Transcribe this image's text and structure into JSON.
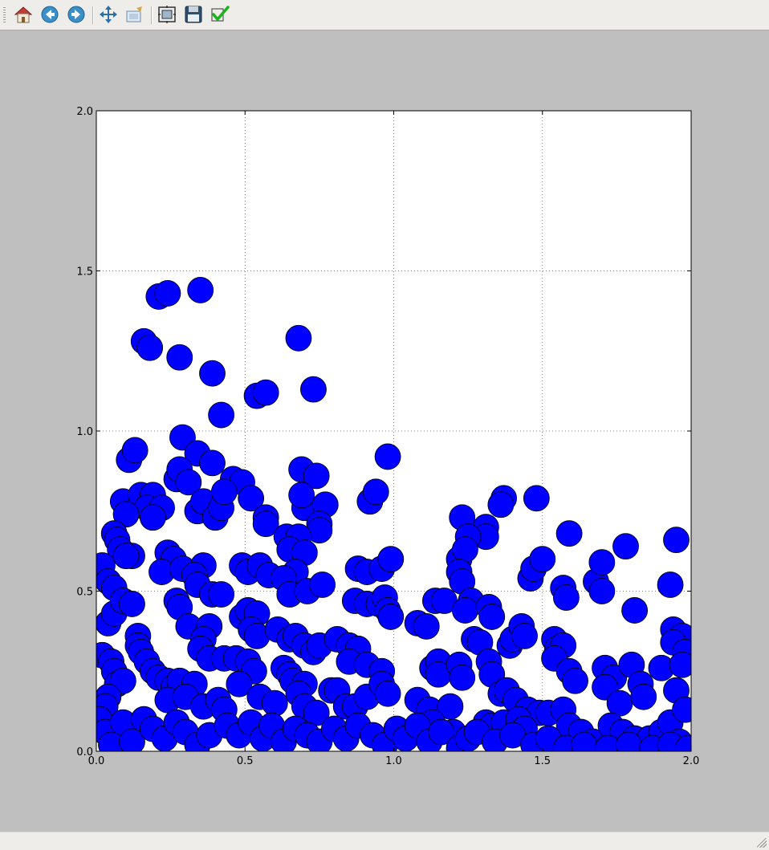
{
  "toolbar": {
    "buttons": [
      {
        "name": "home-button",
        "icon": "home-icon",
        "tooltip": "Home"
      },
      {
        "name": "back-button",
        "icon": "back-arrow-icon",
        "tooltip": "Back"
      },
      {
        "name": "forward-button",
        "icon": "forward-arrow-icon",
        "tooltip": "Forward"
      },
      {
        "name": "pan-button",
        "icon": "move-arrows-icon",
        "tooltip": "Pan"
      },
      {
        "name": "zoom-button",
        "icon": "zoom-rect-icon",
        "tooltip": "Zoom"
      },
      {
        "name": "subplots-button",
        "icon": "subplots-icon",
        "tooltip": "Subplots"
      },
      {
        "name": "save-button",
        "icon": "floppy-disk-icon",
        "tooltip": "Save"
      },
      {
        "name": "edit-axis-button",
        "icon": "checkmark-icon",
        "tooltip": "Edit axis"
      }
    ]
  },
  "colors": {
    "marker_fill": "#0000ff",
    "marker_edge": "#000000",
    "figure_bg": "#bfbfbf",
    "axes_bg": "#ffffff"
  },
  "chart_data": {
    "type": "scatter",
    "title": "",
    "xlabel": "",
    "ylabel": "",
    "xlim": [
      0.0,
      2.0
    ],
    "ylim": [
      0.0,
      2.0
    ],
    "xticks": [
      "0.0",
      "0.5",
      "1.0",
      "1.5",
      "2.0"
    ],
    "yticks": [
      "0.0",
      "0.5",
      "1.0",
      "1.5",
      "2.0"
    ],
    "grid": true,
    "marker": "circle",
    "points": [
      [
        0.21,
        1.42
      ],
      [
        0.24,
        1.43
      ],
      [
        0.35,
        1.44
      ],
      [
        0.16,
        1.28
      ],
      [
        0.18,
        1.26
      ],
      [
        0.28,
        1.23
      ],
      [
        0.68,
        1.29
      ],
      [
        0.39,
        1.18
      ],
      [
        0.54,
        1.11
      ],
      [
        0.57,
        1.12
      ],
      [
        0.73,
        1.13
      ],
      [
        0.42,
        1.05
      ],
      [
        0.29,
        0.98
      ],
      [
        0.11,
        0.91
      ],
      [
        0.13,
        0.94
      ],
      [
        0.34,
        0.93
      ],
      [
        0.39,
        0.9
      ],
      [
        0.98,
        0.92
      ],
      [
        0.27,
        0.85
      ],
      [
        0.28,
        0.88
      ],
      [
        0.31,
        0.84
      ],
      [
        0.46,
        0.85
      ],
      [
        0.49,
        0.84
      ],
      [
        0.69,
        0.88
      ],
      [
        0.74,
        0.86
      ],
      [
        0.09,
        0.78
      ],
      [
        0.15,
        0.8
      ],
      [
        0.19,
        0.8
      ],
      [
        0.17,
        0.76
      ],
      [
        0.22,
        0.76
      ],
      [
        0.19,
        0.73
      ],
      [
        0.1,
        0.74
      ],
      [
        0.34,
        0.75
      ],
      [
        0.36,
        0.78
      ],
      [
        0.4,
        0.73
      ],
      [
        0.42,
        0.76
      ],
      [
        0.43,
        0.81
      ],
      [
        0.52,
        0.79
      ],
      [
        0.57,
        0.73
      ],
      [
        0.57,
        0.71
      ],
      [
        0.7,
        0.76
      ],
      [
        0.69,
        0.8
      ],
      [
        0.77,
        0.77
      ],
      [
        0.75,
        0.71
      ],
      [
        0.75,
        0.69
      ],
      [
        0.92,
        0.78
      ],
      [
        0.94,
        0.81
      ],
      [
        1.23,
        0.73
      ],
      [
        1.37,
        0.79
      ],
      [
        1.36,
        0.77
      ],
      [
        1.48,
        0.79
      ],
      [
        1.31,
        0.7
      ],
      [
        1.31,
        0.67
      ],
      [
        1.25,
        0.67
      ],
      [
        1.59,
        0.68
      ],
      [
        1.78,
        0.64
      ],
      [
        1.95,
        0.66
      ],
      [
        0.06,
        0.68
      ],
      [
        0.07,
        0.66
      ],
      [
        0.08,
        0.63
      ],
      [
        0.12,
        0.61
      ],
      [
        0.1,
        0.61
      ],
      [
        0.02,
        0.58
      ],
      [
        0.04,
        0.53
      ],
      [
        0.06,
        0.51
      ],
      [
        0.24,
        0.62
      ],
      [
        0.26,
        0.6
      ],
      [
        0.22,
        0.56
      ],
      [
        0.29,
        0.57
      ],
      [
        0.36,
        0.58
      ],
      [
        0.33,
        0.55
      ],
      [
        0.34,
        0.52
      ],
      [
        0.39,
        0.49
      ],
      [
        0.42,
        0.49
      ],
      [
        0.49,
        0.58
      ],
      [
        0.51,
        0.56
      ],
      [
        0.55,
        0.58
      ],
      [
        0.58,
        0.55
      ],
      [
        0.64,
        0.67
      ],
      [
        0.68,
        0.67
      ],
      [
        0.65,
        0.63
      ],
      [
        0.7,
        0.62
      ],
      [
        0.67,
        0.56
      ],
      [
        0.63,
        0.54
      ],
      [
        0.65,
        0.49
      ],
      [
        0.71,
        0.5
      ],
      [
        0.76,
        0.52
      ],
      [
        0.88,
        0.57
      ],
      [
        0.91,
        0.56
      ],
      [
        0.96,
        0.57
      ],
      [
        0.99,
        0.6
      ],
      [
        0.87,
        0.47
      ],
      [
        0.91,
        0.46
      ],
      [
        0.95,
        0.46
      ],
      [
        0.97,
        0.48
      ],
      [
        0.98,
        0.44
      ],
      [
        0.99,
        0.42
      ],
      [
        1.14,
        0.47
      ],
      [
        1.17,
        0.47
      ],
      [
        1.22,
        0.6
      ],
      [
        1.24,
        0.63
      ],
      [
        1.22,
        0.56
      ],
      [
        1.23,
        0.53
      ],
      [
        1.26,
        0.47
      ],
      [
        1.24,
        0.44
      ],
      [
        1.32,
        0.45
      ],
      [
        1.33,
        0.42
      ],
      [
        1.46,
        0.54
      ],
      [
        1.47,
        0.57
      ],
      [
        1.5,
        0.6
      ],
      [
        1.57,
        0.51
      ],
      [
        1.58,
        0.48
      ],
      [
        1.68,
        0.53
      ],
      [
        1.7,
        0.5
      ],
      [
        1.7,
        0.59
      ],
      [
        1.81,
        0.44
      ],
      [
        1.93,
        0.52
      ],
      [
        0.04,
        0.4
      ],
      [
        0.06,
        0.43
      ],
      [
        0.09,
        0.47
      ],
      [
        0.12,
        0.46
      ],
      [
        0.14,
        0.36
      ],
      [
        0.14,
        0.33
      ],
      [
        0.15,
        0.31
      ],
      [
        0.27,
        0.47
      ],
      [
        0.28,
        0.45
      ],
      [
        0.31,
        0.39
      ],
      [
        0.38,
        0.39
      ],
      [
        0.36,
        0.35
      ],
      [
        0.35,
        0.32
      ],
      [
        0.38,
        0.29
      ],
      [
        0.49,
        0.42
      ],
      [
        0.51,
        0.44
      ],
      [
        0.54,
        0.43
      ],
      [
        0.52,
        0.38
      ],
      [
        0.54,
        0.36
      ],
      [
        0.61,
        0.38
      ],
      [
        0.65,
        0.35
      ],
      [
        0.67,
        0.36
      ],
      [
        0.7,
        0.33
      ],
      [
        0.73,
        0.31
      ],
      [
        0.75,
        0.33
      ],
      [
        0.81,
        0.35
      ],
      [
        0.85,
        0.33
      ],
      [
        0.88,
        0.32
      ],
      [
        0.85,
        0.28
      ],
      [
        0.91,
        0.27
      ],
      [
        0.96,
        0.25
      ],
      [
        1.08,
        0.4
      ],
      [
        1.11,
        0.39
      ],
      [
        1.13,
        0.26
      ],
      [
        1.15,
        0.28
      ],
      [
        1.15,
        0.24
      ],
      [
        1.22,
        0.27
      ],
      [
        1.23,
        0.23
      ],
      [
        1.27,
        0.35
      ],
      [
        1.29,
        0.34
      ],
      [
        1.32,
        0.28
      ],
      [
        1.33,
        0.24
      ],
      [
        1.39,
        0.33
      ],
      [
        1.4,
        0.35
      ],
      [
        1.43,
        0.39
      ],
      [
        1.44,
        0.36
      ],
      [
        1.54,
        0.35
      ],
      [
        1.55,
        0.32
      ],
      [
        1.57,
        0.33
      ],
      [
        1.54,
        0.29
      ],
      [
        1.59,
        0.25
      ],
      [
        1.61,
        0.22
      ],
      [
        1.71,
        0.26
      ],
      [
        1.74,
        0.23
      ],
      [
        1.71,
        0.2
      ],
      [
        1.76,
        0.15
      ],
      [
        1.8,
        0.27
      ],
      [
        1.83,
        0.21
      ],
      [
        1.84,
        0.17
      ],
      [
        1.9,
        0.26
      ],
      [
        1.94,
        0.38
      ],
      [
        1.97,
        0.36
      ],
      [
        1.94,
        0.34
      ],
      [
        1.98,
        0.31
      ],
      [
        1.97,
        0.27
      ],
      [
        1.95,
        0.19
      ],
      [
        0.02,
        0.3
      ],
      [
        0.05,
        0.28
      ],
      [
        0.06,
        0.25
      ],
      [
        0.07,
        0.21
      ],
      [
        0.09,
        0.22
      ],
      [
        0.04,
        0.17
      ],
      [
        0.03,
        0.14
      ],
      [
        0.17,
        0.28
      ],
      [
        0.19,
        0.25
      ],
      [
        0.21,
        0.23
      ],
      [
        0.24,
        0.22
      ],
      [
        0.26,
        0.2
      ],
      [
        0.28,
        0.22
      ],
      [
        0.24,
        0.16
      ],
      [
        0.33,
        0.21
      ],
      [
        0.3,
        0.17
      ],
      [
        0.36,
        0.14
      ],
      [
        0.41,
        0.16
      ],
      [
        0.43,
        0.13
      ],
      [
        0.43,
        0.29
      ],
      [
        0.47,
        0.29
      ],
      [
        0.51,
        0.28
      ],
      [
        0.53,
        0.25
      ],
      [
        0.48,
        0.21
      ],
      [
        0.55,
        0.17
      ],
      [
        0.6,
        0.15
      ],
      [
        0.63,
        0.26
      ],
      [
        0.65,
        0.24
      ],
      [
        0.66,
        0.22
      ],
      [
        0.7,
        0.21
      ],
      [
        0.68,
        0.18
      ],
      [
        0.7,
        0.14
      ],
      [
        0.74,
        0.12
      ],
      [
        0.79,
        0.19
      ],
      [
        0.81,
        0.19
      ],
      [
        0.84,
        0.14
      ],
      [
        0.87,
        0.14
      ],
      [
        0.91,
        0.17
      ],
      [
        0.96,
        0.21
      ],
      [
        0.98,
        0.18
      ],
      [
        1.08,
        0.16
      ],
      [
        1.12,
        0.13
      ],
      [
        1.19,
        0.14
      ],
      [
        1.13,
        0.09
      ],
      [
        1.2,
        0.06
      ],
      [
        1.36,
        0.18
      ],
      [
        1.38,
        0.19
      ],
      [
        1.41,
        0.16
      ],
      [
        1.45,
        0.13
      ],
      [
        1.49,
        0.12
      ],
      [
        1.52,
        0.12
      ],
      [
        1.57,
        0.13
      ],
      [
        1.31,
        0.09
      ],
      [
        1.33,
        0.08
      ],
      [
        1.37,
        0.09
      ],
      [
        1.42,
        0.1
      ],
      [
        1.44,
        0.07
      ],
      [
        1.59,
        0.08
      ],
      [
        1.63,
        0.06
      ],
      [
        1.67,
        0.03
      ],
      [
        1.73,
        0.08
      ],
      [
        1.77,
        0.06
      ],
      [
        1.81,
        0.04
      ],
      [
        1.86,
        0.04
      ],
      [
        1.9,
        0.06
      ],
      [
        1.93,
        0.09
      ],
      [
        1.96,
        0.03
      ],
      [
        1.98,
        0.13
      ],
      [
        0.01,
        0.1
      ],
      [
        0.03,
        0.06
      ],
      [
        0.05,
        0.02
      ],
      [
        0.09,
        0.09
      ],
      [
        0.12,
        0.03
      ],
      [
        0.16,
        0.1
      ],
      [
        0.19,
        0.07
      ],
      [
        0.23,
        0.04
      ],
      [
        0.27,
        0.09
      ],
      [
        0.3,
        0.06
      ],
      [
        0.34,
        0.02
      ],
      [
        0.38,
        0.05
      ],
      [
        0.44,
        0.08
      ],
      [
        0.48,
        0.05
      ],
      [
        0.52,
        0.09
      ],
      [
        0.56,
        0.04
      ],
      [
        0.59,
        0.08
      ],
      [
        0.63,
        0.03
      ],
      [
        0.67,
        0.07
      ],
      [
        0.71,
        0.05
      ],
      [
        0.75,
        0.03
      ],
      [
        0.8,
        0.07
      ],
      [
        0.84,
        0.04
      ],
      [
        0.88,
        0.08
      ],
      [
        0.93,
        0.05
      ],
      [
        0.97,
        0.02
      ],
      [
        1.01,
        0.07
      ],
      [
        1.04,
        0.04
      ],
      [
        1.08,
        0.08
      ],
      [
        1.12,
        0.03
      ],
      [
        1.16,
        0.06
      ],
      [
        1.22,
        0.01
      ],
      [
        1.25,
        0.04
      ],
      [
        1.28,
        0.06
      ],
      [
        1.34,
        0.03
      ],
      [
        1.4,
        0.05
      ],
      [
        1.47,
        0.02
      ],
      [
        1.52,
        0.04
      ],
      [
        1.58,
        0.01
      ],
      [
        1.64,
        0.02
      ],
      [
        1.72,
        0.01
      ],
      [
        1.79,
        0.02
      ],
      [
        1.87,
        0.01
      ],
      [
        1.93,
        0.02
      ],
      [
        1.99,
        0.01
      ]
    ]
  }
}
